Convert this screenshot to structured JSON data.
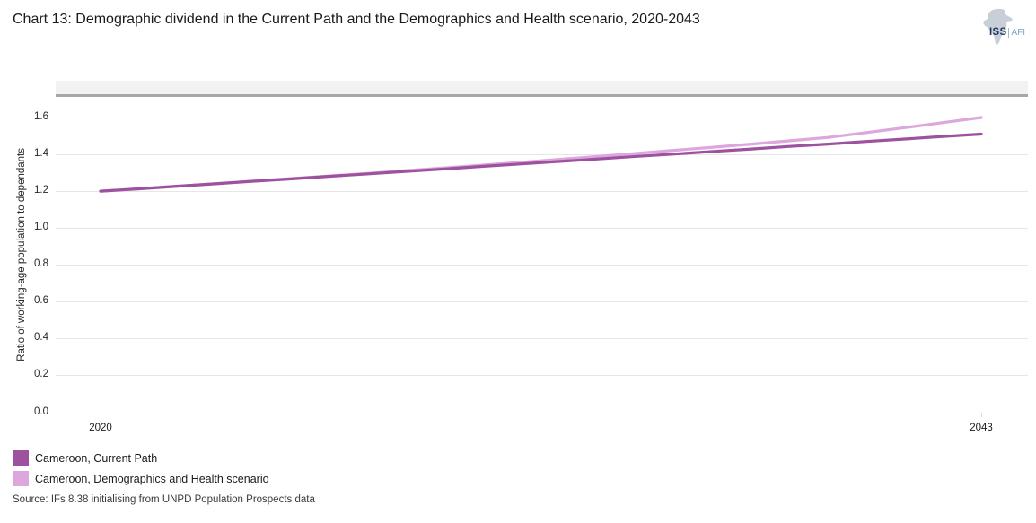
{
  "header": {
    "title": "Chart 13: Demographic dividend in the Current Path and the Demographics and Health scenario, 2020-2043",
    "logo": {
      "iss": "ISS",
      "afi": "AFI"
    }
  },
  "chart_data": {
    "type": "line",
    "title": "Chart 13: Demographic dividend in the Current Path and the Demographics and Health scenario, 2020-2043",
    "xlabel": "",
    "ylabel": "Ratio of working-age population to dependants",
    "ylim": [
      0.0,
      1.6
    ],
    "y_ticks": [
      "0.0",
      "0.2",
      "0.4",
      "0.6",
      "0.8",
      "1.0",
      "1.2",
      "1.4",
      "1.6"
    ],
    "x_tick_labels": [
      "2020",
      "2043"
    ],
    "x_range": [
      2020,
      2043
    ],
    "grid": true,
    "legend_position": "bottom-left",
    "x": [
      2020,
      2021,
      2022,
      2023,
      2024,
      2025,
      2026,
      2027,
      2028,
      2029,
      2030,
      2031,
      2032,
      2033,
      2034,
      2035,
      2036,
      2037,
      2038,
      2039,
      2040,
      2041,
      2042,
      2043
    ],
    "series": [
      {
        "name": "Cameroon, Current Path",
        "color": "#9c529e",
        "values": [
          1.2,
          1.213,
          1.227,
          1.24,
          1.254,
          1.267,
          1.281,
          1.294,
          1.308,
          1.321,
          1.335,
          1.348,
          1.362,
          1.375,
          1.389,
          1.402,
          1.416,
          1.429,
          1.443,
          1.456,
          1.47,
          1.483,
          1.497,
          1.51
        ]
      },
      {
        "name": "Cameroon, Demographics and Health scenario",
        "color": "#dda6dd",
        "values": [
          1.2,
          1.213,
          1.227,
          1.241,
          1.255,
          1.269,
          1.283,
          1.297,
          1.312,
          1.327,
          1.342,
          1.357,
          1.373,
          1.389,
          1.405,
          1.422,
          1.439,
          1.456,
          1.474,
          1.492,
          1.518,
          1.545,
          1.572,
          1.6
        ]
      }
    ],
    "source": "Source: IFs 8.38 initialising from UNPD Population Prospects data"
  },
  "colors": {
    "band_fill": "#f2f2f2",
    "band_border": "#a7a7a7",
    "gridline": "#e6e6e6",
    "series_current_path": "#9c529e",
    "series_demographics_health": "#dda6dd"
  }
}
